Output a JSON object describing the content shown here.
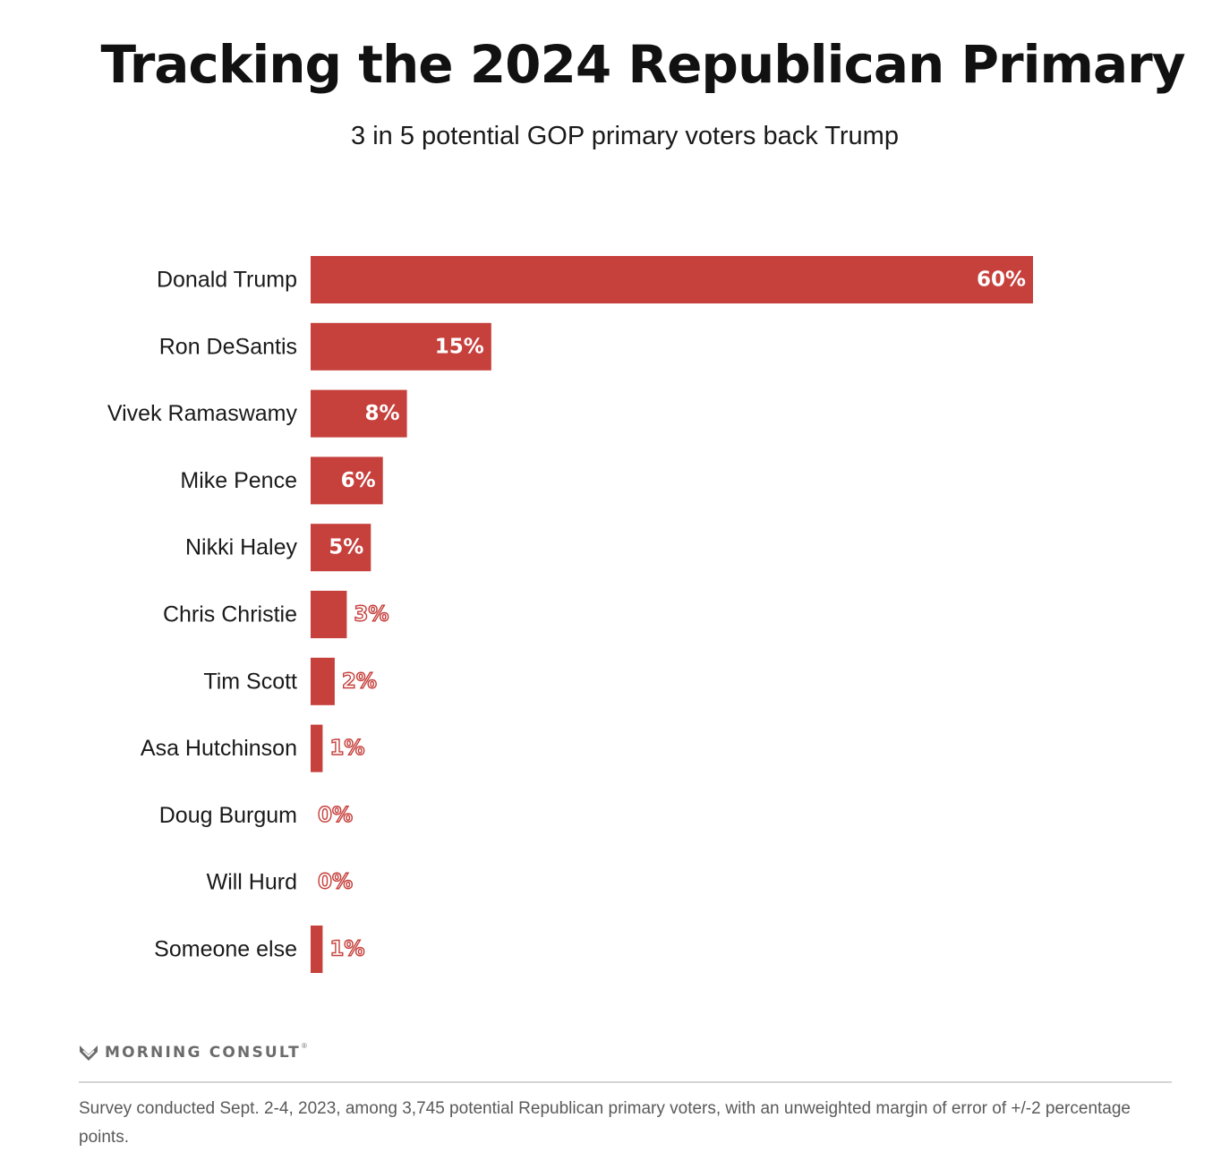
{
  "header": {
    "title": "Tracking the 2024 Republican Primary",
    "subtitle": "3 in 5 potential GOP primary voters back Trump"
  },
  "colors": {
    "bar": "#c6403c",
    "label_inside": "#ffffff",
    "label_outline": "#c6403c"
  },
  "chart_data": {
    "type": "bar",
    "orientation": "horizontal",
    "title": "Tracking the 2024 Republican Primary",
    "subtitle": "3 in 5 potential GOP primary voters back Trump",
    "categories": [
      "Donald Trump",
      "Ron DeSantis",
      "Vivek Ramaswamy",
      "Mike Pence",
      "Nikki Haley",
      "Chris Christie",
      "Tim Scott",
      "Asa Hutchinson",
      "Doug Burgum",
      "Will Hurd",
      "Someone else"
    ],
    "values": [
      60,
      15,
      8,
      6,
      5,
      3,
      2,
      1,
      0,
      0,
      1
    ],
    "value_labels": [
      "60%",
      "15%",
      "8%",
      "6%",
      "5%",
      "3%",
      "2%",
      "1%",
      "0%",
      "0%",
      "1%"
    ],
    "unit": "%",
    "xlim": [
      0,
      60
    ],
    "grid": false,
    "legend": "none"
  },
  "brand": {
    "name": "MORNING CONSULT",
    "mark": "®",
    "icon": "morning-consult-logo-icon"
  },
  "footnote": "Survey conducted Sept. 2-4, 2023, among 3,745 potential Republican primary voters, with an unweighted margin of error of +/-2 percentage points."
}
